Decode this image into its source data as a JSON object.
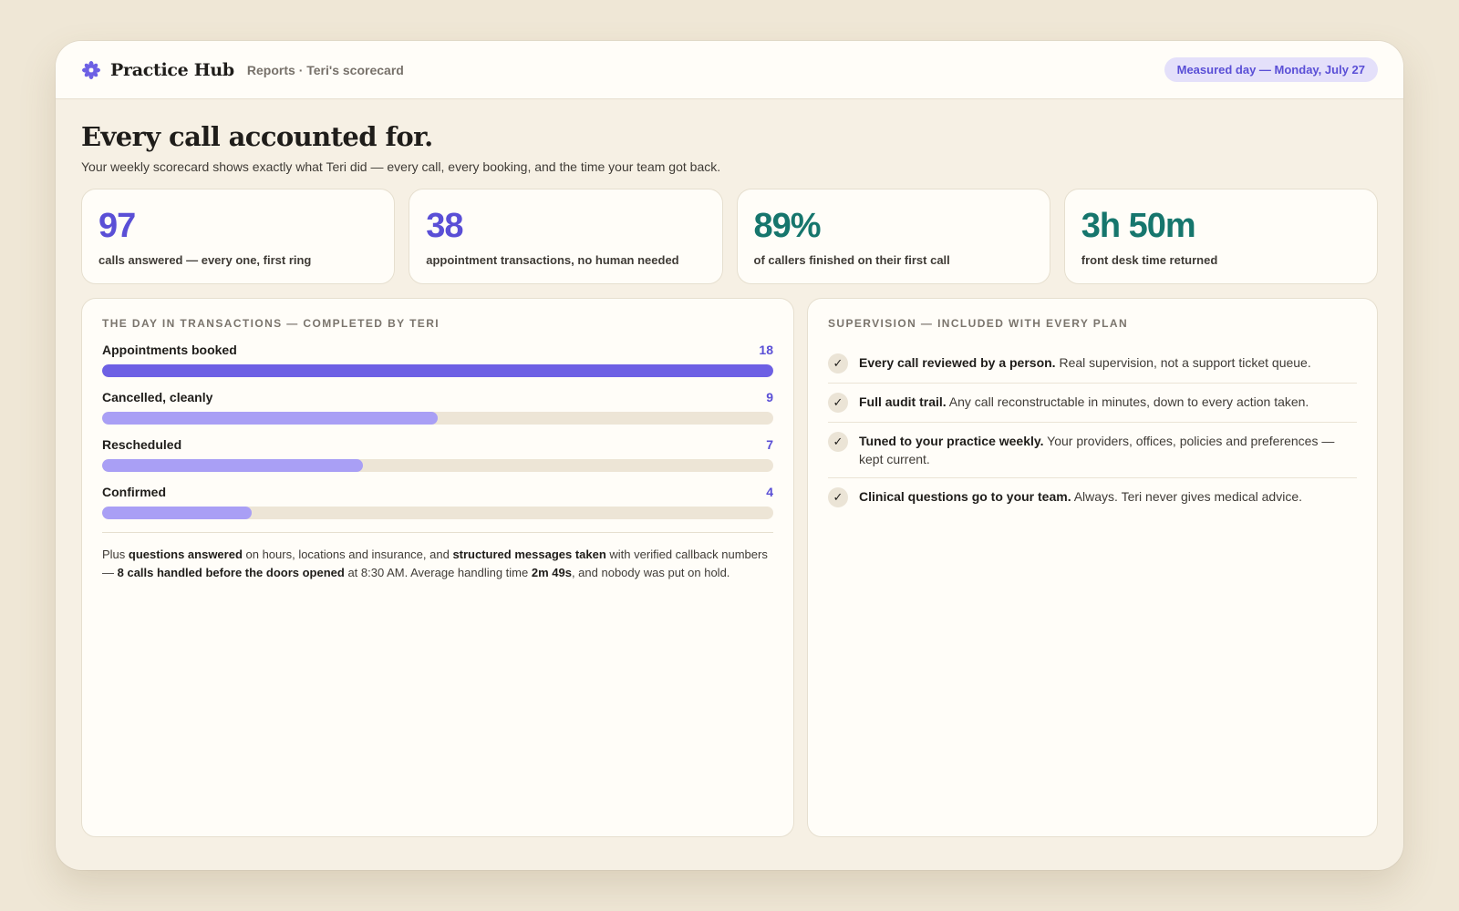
{
  "header": {
    "brand": "Practice Hub",
    "breadcrumb": "Reports · Teri's scorecard",
    "measured_day": "Measured day — Monday, July 27"
  },
  "hero": {
    "title": "Every call accounted for.",
    "subtitle": "Your weekly scorecard shows exactly what Teri did — every call, every booking, and the time your team got back."
  },
  "stats": [
    {
      "value": "97",
      "label": "calls answered — every one, first ring",
      "color": "#5a4fd6"
    },
    {
      "value": "38",
      "label": "appointment transactions, no human needed",
      "color": "#5a4fd6"
    },
    {
      "value": "89%",
      "label": "of callers finished on their first call",
      "color": "#16766d"
    },
    {
      "value": "3h 50m",
      "label": "front desk time returned",
      "color": "#16766d"
    }
  ],
  "transactions": {
    "title": "THE DAY IN TRANSACTIONS — COMPLETED BY TERI",
    "max": 18,
    "items": [
      {
        "label": "Appointments booked",
        "value": 18
      },
      {
        "label": "Cancelled, cleanly",
        "value": 9
      },
      {
        "label": "Rescheduled",
        "value": 7
      },
      {
        "label": "Confirmed",
        "value": 4
      }
    ],
    "note": {
      "p1": "Plus ",
      "b1": "questions answered",
      "p2": " on hours, locations and insurance, and ",
      "b2": "structured messages taken",
      "p3": " with verified callback numbers — ",
      "b3": "8 calls handled before the doors opened",
      "p4": " at 8:30 AM. Average handling time ",
      "b4": "2m 49s",
      "p5": ", and nobody was put on hold."
    }
  },
  "supervision": {
    "title": "SUPERVISION — INCLUDED WITH EVERY PLAN",
    "items": [
      {
        "bold": "Every call reviewed by a person.",
        "text": " Real supervision, not a support ticket queue."
      },
      {
        "bold": "Full audit trail.",
        "text": " Any call reconstructable in minutes, down to every action taken."
      },
      {
        "bold": "Tuned to your practice weekly.",
        "text": " Your providers, offices, policies and preferences — kept current."
      },
      {
        "bold": "Clinical questions go to your team.",
        "text": " Always. Teri never gives medical advice."
      }
    ],
    "check_glyph": "✓"
  }
}
